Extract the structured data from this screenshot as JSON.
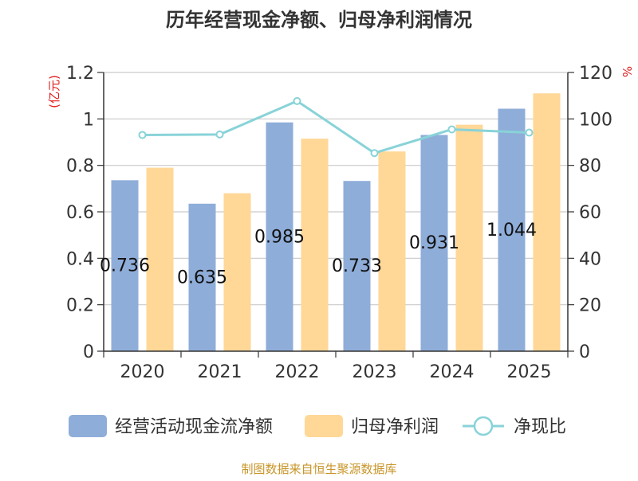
{
  "chart_data": {
    "type": "bar",
    "title": "历年经营现金净额、归母净利润情况",
    "categories": [
      "2020",
      "2021",
      "2022",
      "2023",
      "2024",
      "2025"
    ],
    "y_left": {
      "unit_label": "(亿元)",
      "ylim": [
        0,
        1.2
      ],
      "ticks": [
        "0",
        "0.2",
        "0.4",
        "0.6",
        "0.8",
        "1",
        "1.2"
      ]
    },
    "y_right": {
      "unit_label": "%",
      "ylim": [
        0,
        120
      ],
      "ticks": [
        "0",
        "20",
        "40",
        "60",
        "80",
        "100",
        "120"
      ]
    },
    "grid": true,
    "legend_position": "bottom",
    "series": [
      {
        "name": "经营活动现金流净额",
        "type": "bar",
        "axis": "left",
        "color": "#8fadd9",
        "values": [
          0.736,
          0.635,
          0.985,
          0.733,
          0.931,
          1.044
        ],
        "labels": [
          "0.736",
          "0.635",
          "0.985",
          "0.733",
          "0.931",
          "1.044"
        ]
      },
      {
        "name": "归母净利润",
        "type": "bar",
        "axis": "left",
        "color": "#ffd797",
        "values": [
          0.79,
          0.68,
          0.915,
          0.86,
          0.975,
          1.11
        ]
      },
      {
        "name": "净现比",
        "type": "line",
        "axis": "right",
        "color": "#88d3d8",
        "values": [
          93.1,
          93.3,
          107.7,
          85.3,
          95.5,
          94.1
        ]
      }
    ],
    "source": "制图数据来自恒生聚源数据库"
  }
}
